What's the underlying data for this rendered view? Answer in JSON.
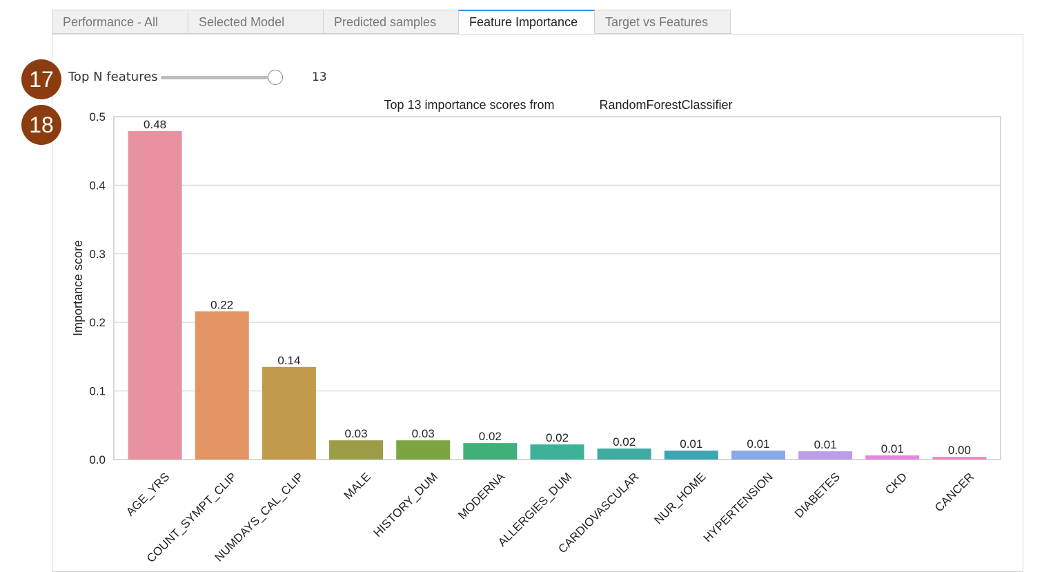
{
  "tabs": [
    {
      "label": "Performance - All",
      "active": false
    },
    {
      "label": "Selected Model",
      "active": false
    },
    {
      "label": "Predicted samples",
      "active": false
    },
    {
      "label": "Feature Importance",
      "active": true
    },
    {
      "label": "Target vs Features",
      "active": false
    }
  ],
  "badges": [
    "17",
    "18"
  ],
  "slider": {
    "label": "Top N features",
    "value": "13",
    "min": 1,
    "max": 13,
    "current": 13
  },
  "colors": {
    "tab_active_accent": "#2196f3",
    "badge": "#8b3d0f"
  },
  "chart_data": {
    "type": "bar",
    "title_left": "Top 13 importance scores from",
    "title_right": "RandomForestClassifier",
    "xlabel": "",
    "ylabel": "Importance score",
    "ylim": [
      0,
      0.5
    ],
    "yticks": [
      "0.0",
      "0.1",
      "0.2",
      "0.3",
      "0.4",
      "0.5"
    ],
    "grid": true,
    "categories": [
      "AGE_YRS",
      "COUNT_SYMPT_CLIP",
      "NUMDAYS_CAL_CLIP",
      "MALE",
      "HISTORY_DUM",
      "MODERNA",
      "ALLERGIES_DUM",
      "CARDIOVASCULAR",
      "NUR_HOME",
      "HYPERTENSION",
      "DIABETES",
      "CKD",
      "CANCER"
    ],
    "values": [
      0.479,
      0.216,
      0.135,
      0.028,
      0.028,
      0.024,
      0.022,
      0.016,
      0.013,
      0.013,
      0.012,
      0.006,
      0.004
    ],
    "value_labels": [
      "0.48",
      "0.22",
      "0.14",
      "0.03",
      "0.03",
      "0.02",
      "0.02",
      "0.02",
      "0.01",
      "0.01",
      "0.01",
      "0.01",
      "0.00"
    ],
    "bar_colors": [
      "#e8919f",
      "#e29563",
      "#c19b4b",
      "#9d9c47",
      "#7ba542",
      "#3fb07a",
      "#3db29a",
      "#3eab9f",
      "#3ca7b3",
      "#86a9e8",
      "#bb9ee6",
      "#e586e0",
      "#eb8bc3"
    ]
  }
}
